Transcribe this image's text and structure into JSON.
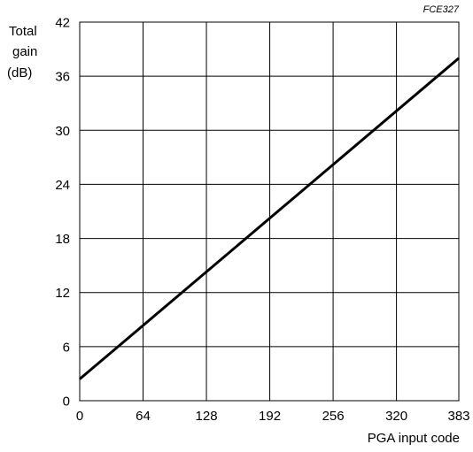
{
  "figure_code": "FCE327",
  "chart_data": {
    "type": "line",
    "title": "",
    "xlabel": "PGA input code",
    "ylabel_lines": [
      "Total",
      "gain",
      "(dB)"
    ],
    "xlim": [
      0,
      383
    ],
    "ylim": [
      0,
      42
    ],
    "x_ticks": [
      0,
      64,
      128,
      192,
      256,
      320,
      383
    ],
    "y_ticks": [
      0,
      6,
      12,
      18,
      24,
      30,
      36,
      42
    ],
    "grid": true,
    "series": [
      {
        "x": [
          0,
          383
        ],
        "y": [
          2.4,
          38
        ]
      }
    ],
    "colors": {
      "line": "#000000",
      "grid": "#000000",
      "background": "#ffffff"
    }
  }
}
